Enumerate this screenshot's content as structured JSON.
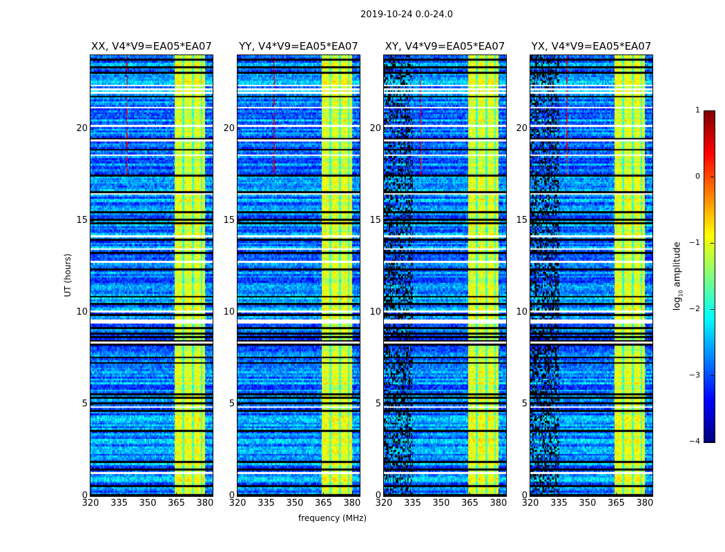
{
  "chart_data": {
    "type": "heatmap",
    "title": "2019-10-24 0.0-24.0",
    "xlabel": "frequency (MHz)",
    "ylabel": "UT (hours)",
    "xlim": [
      320,
      384
    ],
    "ylim": [
      0,
      24
    ],
    "xticks": [
      320,
      335,
      350,
      365,
      380
    ],
    "yticks": [
      0,
      5,
      10,
      15,
      20
    ],
    "panels": [
      {
        "title": "XX, V4*V9=EA05*EA07",
        "pol": "XX",
        "cross": false
      },
      {
        "title": "YY, V4*V9=EA05*EA07",
        "pol": "YY",
        "cross": false
      },
      {
        "title": "XY, V4*V9=EA05*EA07",
        "pol": "XY",
        "cross": true
      },
      {
        "title": "YX, V4*V9=EA05*EA07",
        "pol": "YX",
        "cross": true
      }
    ],
    "colormap": "jet",
    "colorbar": {
      "label_main": "log",
      "label_sub": "10",
      "label_rest": " amplitude",
      "range": [
        -4,
        1
      ],
      "ticks": [
        "1",
        "0",
        "−1",
        "−2",
        "−3",
        "−4"
      ],
      "tick_values": [
        1,
        0,
        -1,
        -2,
        -3,
        -4
      ]
    },
    "features": {
      "low_band_log_amp": -2.7,
      "high_band_mhz": [
        364,
        380
      ],
      "high_band_log_amp": -1.0,
      "rfi_line_mhz": 339,
      "rfi_hours": [
        17.5,
        24
      ],
      "flagged_rows": "black (flagged) and white (no data) horizontal stripes across all panels"
    }
  }
}
